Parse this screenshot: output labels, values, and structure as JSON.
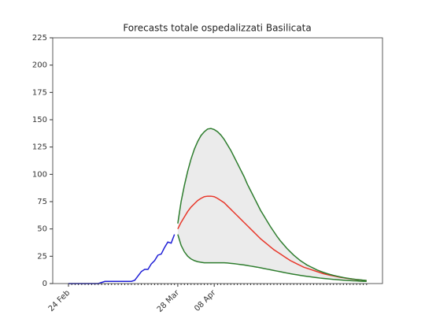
{
  "chart_data": {
    "type": "line",
    "title": "Forecasts totale ospedalizzati Basilicata",
    "categories": [
      "24 Feb",
      null,
      null,
      null,
      null,
      null,
      null,
      null,
      null,
      null,
      null,
      null,
      null,
      null,
      null,
      null,
      null,
      null,
      null,
      null,
      null,
      null,
      null,
      null,
      null,
      null,
      null,
      null,
      null,
      null,
      null,
      null,
      null,
      "28 Mar",
      null,
      null,
      null,
      null,
      null,
      null,
      null,
      null,
      null,
      null,
      "08 Apr",
      null,
      null,
      null,
      null,
      null,
      null,
      null,
      null,
      null,
      null,
      null,
      null,
      null,
      null,
      null,
      null,
      null,
      null,
      null,
      null,
      null,
      null,
      null,
      null,
      null,
      null,
      null,
      null,
      null,
      null,
      null,
      null,
      null,
      null,
      null,
      null,
      null,
      null,
      null,
      null,
      null,
      null,
      null,
      null,
      null,
      null
    ],
    "xlim": [
      -4.75,
      94.8
    ],
    "ylim": [
      0,
      225
    ],
    "yticks": [
      0,
      25,
      50,
      75,
      100,
      125,
      150,
      175,
      200,
      225
    ],
    "grid": false,
    "band": {
      "color": "#ebebeb",
      "series": [
        2,
        3
      ]
    },
    "series": [
      {
        "color": "#1f1fd6",
        "values": [
          0,
          0,
          0,
          0,
          0,
          0,
          0,
          0,
          0,
          0,
          1,
          2,
          2,
          2,
          2,
          2,
          2,
          2,
          2,
          2,
          3,
          7,
          11,
          13,
          13,
          18,
          21,
          26,
          27,
          33,
          38,
          37,
          45,
          null,
          null,
          null,
          null,
          null,
          null,
          null,
          null,
          null,
          null,
          null,
          null,
          null,
          null,
          null,
          null,
          null,
          null,
          null,
          null,
          null,
          null,
          null,
          null,
          null,
          null,
          null,
          null,
          null,
          null,
          null,
          null,
          null,
          null,
          null,
          null,
          null,
          null,
          null,
          null,
          null,
          null,
          null,
          null,
          null,
          null,
          null,
          null,
          null,
          null,
          null,
          null,
          null,
          null,
          null,
          null,
          null,
          null
        ]
      },
      {
        "color": "#e8372a",
        "values": [
          null,
          null,
          null,
          null,
          null,
          null,
          null,
          null,
          null,
          null,
          null,
          null,
          null,
          null,
          null,
          null,
          null,
          null,
          null,
          null,
          null,
          null,
          null,
          null,
          null,
          null,
          null,
          null,
          null,
          null,
          null,
          null,
          null,
          50,
          56,
          61,
          66,
          70,
          73,
          76,
          78,
          79.5,
          80,
          80,
          79.5,
          78,
          76,
          74,
          71,
          68,
          65,
          62,
          59,
          56,
          53,
          50,
          47,
          44,
          41,
          38.5,
          36,
          33.5,
          31,
          29,
          27,
          25,
          23,
          21,
          19.5,
          18,
          16.5,
          15,
          14,
          13,
          12,
          11,
          10,
          9,
          8.3,
          7.6,
          7,
          6.4,
          5.8,
          5.3,
          4.8,
          4.4,
          4,
          3.6,
          3.3,
          3,
          2.7
        ]
      },
      {
        "color": "#2e7d2e",
        "values": [
          null,
          null,
          null,
          null,
          null,
          null,
          null,
          null,
          null,
          null,
          null,
          null,
          null,
          null,
          null,
          null,
          null,
          null,
          null,
          null,
          null,
          null,
          null,
          null,
          null,
          null,
          null,
          null,
          null,
          null,
          null,
          null,
          null,
          55,
          75,
          90,
          103,
          114,
          123,
          130,
          135.5,
          139,
          141.5,
          142,
          141,
          139,
          136,
          132,
          127,
          122,
          116,
          110,
          104,
          98,
          91,
          85,
          79,
          73,
          67,
          62,
          57,
          52,
          47.5,
          43,
          39,
          35.5,
          32,
          29,
          26,
          23.5,
          21,
          19,
          17,
          15.5,
          14,
          12.5,
          11.3,
          10.2,
          9.2,
          8.3,
          7.5,
          6.8,
          6.1,
          5.5,
          5,
          4.5,
          4.1,
          3.7,
          3.4,
          3.1,
          2.8
        ]
      },
      {
        "color": "#2e7d2e",
        "values": [
          null,
          null,
          null,
          null,
          null,
          null,
          null,
          null,
          null,
          null,
          null,
          null,
          null,
          null,
          null,
          null,
          null,
          null,
          null,
          null,
          null,
          null,
          null,
          null,
          null,
          null,
          null,
          null,
          null,
          null,
          null,
          null,
          null,
          45,
          35,
          29,
          25,
          22.5,
          21,
          20,
          19.5,
          19,
          19,
          19,
          19,
          19,
          19,
          19,
          18.8,
          18.5,
          18.2,
          17.8,
          17.4,
          17,
          16.5,
          16,
          15.5,
          15,
          14.4,
          13.8,
          13.2,
          12.6,
          12,
          11.4,
          10.8,
          10.2,
          9.6,
          9,
          8.5,
          8,
          7.5,
          7,
          6.6,
          6.2,
          5.8,
          5.4,
          5,
          4.7,
          4.4,
          4.1,
          3.8,
          3.6,
          3.3,
          3.1,
          2.9,
          2.7,
          2.5,
          2.4,
          2.2,
          2.1,
          2
        ]
      }
    ]
  }
}
